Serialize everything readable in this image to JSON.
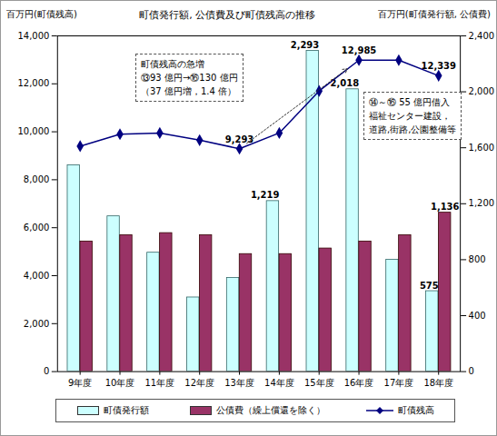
{
  "chart_data": {
    "type": "bar",
    "title": "町債発行額, 公債費及び町債残高の推移",
    "y_label": "百万円(町債残高)",
    "y2_label": "百万円(町債発行額, 公債費)",
    "categories": [
      "9年度",
      "10年度",
      "11年度",
      "12年度",
      "13年度",
      "14年度",
      "15年度",
      "16年度",
      "17年度",
      "18年度"
    ],
    "ylim": [
      0,
      14000
    ],
    "yticks": [
      0,
      {
        "value": 2000,
        "label": "2,000"
      },
      {
        "value": 4000,
        "label": "4,000"
      },
      {
        "value": 6000,
        "label": "6,000"
      },
      {
        "value": 8000,
        "label": "8,000"
      },
      {
        "value": 10000,
        "label": "10,000"
      },
      {
        "value": 12000,
        "label": "12,000"
      },
      {
        "value": 14000,
        "label": "14,000"
      }
    ],
    "y2lim": [
      0,
      2400
    ],
    "y2ticks": [
      0,
      400,
      800,
      {
        "value": 1200,
        "label": "1,200"
      },
      {
        "value": 1600,
        "label": "1,600"
      },
      {
        "value": 2000,
        "label": "2,000"
      },
      {
        "value": 2400,
        "label": "2,400"
      }
    ],
    "grid": false,
    "legend": "bottom",
    "data_labels": true,
    "series": [
      {
        "name": "町債発行額",
        "type": "bar",
        "axis": "y2",
        "color": "#ccffff",
        "values": [
          1475,
          1110,
          850,
          530,
          670,
          1219,
          2293,
          2018,
          800,
          575
        ],
        "value_labels": [
          null,
          null,
          null,
          null,
          null,
          "1,219",
          "2,293",
          "2,018",
          null,
          "575"
        ]
      },
      {
        "name": "公債費（繰上償還を除く）",
        "type": "bar",
        "axis": "y2",
        "color": "#993366",
        "values": [
          930,
          975,
          990,
          975,
          840,
          840,
          880,
          930,
          975,
          1136
        ],
        "value_labels": [
          null,
          null,
          null,
          null,
          null,
          null,
          null,
          null,
          null,
          "1,136"
        ]
      },
      {
        "name": "町債残高",
        "type": "line",
        "color": "#000080",
        "marker": "diamond",
        "values": [
          9400,
          9900,
          9950,
          9650,
          9293,
          9950,
          11700,
          12985,
          12985,
          12339
        ],
        "value_labels": [
          null,
          null,
          null,
          null,
          "9,293",
          null,
          null,
          "12,985",
          null,
          "12,339"
        ]
      }
    ],
    "annotations": [
      {
        "lines": [
          "町債残高の急増",
          "⑬93 億円→⑯130 億円",
          "（37 億円増，1.4 倍）"
        ]
      },
      {
        "lines": [
          "⑭～⑯ 55 億円借入",
          "福祉センター建設，",
          "道路,街路,公園整備等"
        ]
      }
    ]
  }
}
